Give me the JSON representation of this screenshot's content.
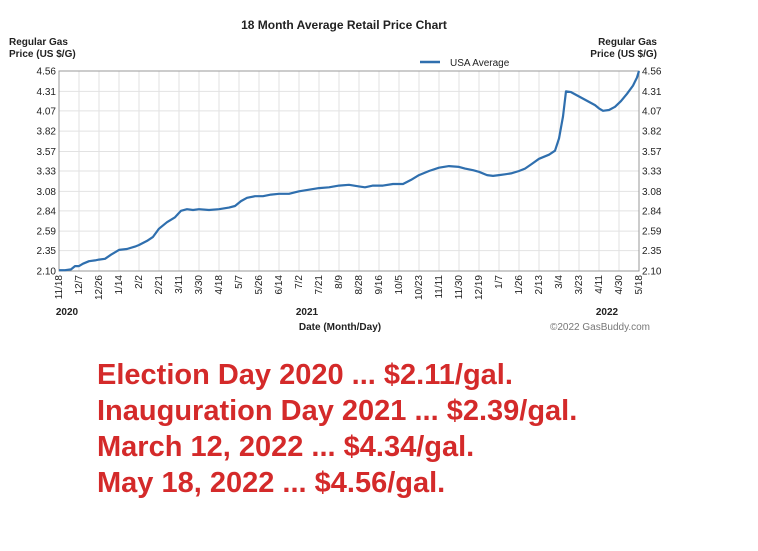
{
  "chart_data": {
    "type": "line",
    "title": "18 Month Average Retail Price Chart",
    "ylabel_left": [
      "Regular Gas",
      "Price (US $/G)"
    ],
    "ylabel_right": [
      "Regular Gas",
      "Price (US $/G)"
    ],
    "xlabel": "Date (Month/Day)",
    "copyright": "©2022 GasBuddy.com",
    "legend": {
      "label": "USA Average",
      "position": "top-right"
    },
    "ylim": [
      2.1,
      4.56
    ],
    "yticks": [
      "4.56",
      "4.31",
      "4.07",
      "3.82",
      "3.57",
      "3.33",
      "3.08",
      "2.84",
      "2.59",
      "2.35",
      "2.10"
    ],
    "xticks": [
      "11/18",
      "12/7",
      "12/26",
      "1/14",
      "2/2",
      "2/21",
      "3/11",
      "3/30",
      "4/18",
      "5/7",
      "5/26",
      "6/14",
      "7/2",
      "7/21",
      "8/9",
      "8/28",
      "9/16",
      "10/5",
      "10/23",
      "11/11",
      "11/30",
      "12/19",
      "1/7",
      "1/26",
      "2/13",
      "3/4",
      "3/23",
      "4/11",
      "4/30",
      "5/18"
    ],
    "year_labels": [
      {
        "label": "2020",
        "tick": 0
      },
      {
        "label": "2021",
        "tick": 12
      },
      {
        "label": "2022",
        "tick": 27
      }
    ],
    "grid": true,
    "series": [
      {
        "name": "USA Average",
        "color": "#2f6fae",
        "points": [
          [
            0,
            2.11
          ],
          [
            0.3,
            2.11
          ],
          [
            0.6,
            2.12
          ],
          [
            0.8,
            2.16
          ],
          [
            1.0,
            2.16
          ],
          [
            1.2,
            2.19
          ],
          [
            1.5,
            2.22
          ],
          [
            1.8,
            2.23
          ],
          [
            2.0,
            2.24
          ],
          [
            2.3,
            2.25
          ],
          [
            2.6,
            2.3
          ],
          [
            3.0,
            2.36
          ],
          [
            3.4,
            2.37
          ],
          [
            3.8,
            2.4
          ],
          [
            4.0,
            2.42
          ],
          [
            4.4,
            2.47
          ],
          [
            4.7,
            2.52
          ],
          [
            5.0,
            2.62
          ],
          [
            5.4,
            2.7
          ],
          [
            5.8,
            2.76
          ],
          [
            6.1,
            2.84
          ],
          [
            6.4,
            2.86
          ],
          [
            6.7,
            2.85
          ],
          [
            7.0,
            2.86
          ],
          [
            7.5,
            2.85
          ],
          [
            8.0,
            2.86
          ],
          [
            8.5,
            2.88
          ],
          [
            8.8,
            2.9
          ],
          [
            9.1,
            2.96
          ],
          [
            9.4,
            3.0
          ],
          [
            9.8,
            3.02
          ],
          [
            10.2,
            3.02
          ],
          [
            10.6,
            3.04
          ],
          [
            11.0,
            3.05
          ],
          [
            11.5,
            3.05
          ],
          [
            12.0,
            3.08
          ],
          [
            12.5,
            3.1
          ],
          [
            13.0,
            3.12
          ],
          [
            13.5,
            3.13
          ],
          [
            14.0,
            3.15
          ],
          [
            14.5,
            3.16
          ],
          [
            15.0,
            3.14
          ],
          [
            15.3,
            3.13
          ],
          [
            15.7,
            3.15
          ],
          [
            16.2,
            3.15
          ],
          [
            16.7,
            3.17
          ],
          [
            17.2,
            3.17
          ],
          [
            17.6,
            3.22
          ],
          [
            18.0,
            3.28
          ],
          [
            18.5,
            3.33
          ],
          [
            19.0,
            3.37
          ],
          [
            19.5,
            3.39
          ],
          [
            20.0,
            3.38
          ],
          [
            20.3,
            3.36
          ],
          [
            20.7,
            3.34
          ],
          [
            21.0,
            3.32
          ],
          [
            21.4,
            3.28
          ],
          [
            21.7,
            3.27
          ],
          [
            22.0,
            3.28
          ],
          [
            22.3,
            3.29
          ],
          [
            22.6,
            3.3
          ],
          [
            23.0,
            3.33
          ],
          [
            23.3,
            3.36
          ],
          [
            23.6,
            3.41
          ],
          [
            24.0,
            3.48
          ],
          [
            24.5,
            3.53
          ],
          [
            24.8,
            3.58
          ],
          [
            25.0,
            3.73
          ],
          [
            25.2,
            4.0
          ],
          [
            25.35,
            4.31
          ],
          [
            25.6,
            4.3
          ],
          [
            25.9,
            4.26
          ],
          [
            26.2,
            4.22
          ],
          [
            26.5,
            4.18
          ],
          [
            26.8,
            4.14
          ],
          [
            27.0,
            4.1
          ],
          [
            27.2,
            4.07
          ],
          [
            27.5,
            4.08
          ],
          [
            27.8,
            4.12
          ],
          [
            28.1,
            4.19
          ],
          [
            28.4,
            4.28
          ],
          [
            28.7,
            4.38
          ],
          [
            28.9,
            4.48
          ],
          [
            29.0,
            4.56
          ]
        ]
      }
    ]
  },
  "annotations": [
    "Election Day 2020 ... $2.11/gal.",
    "Inauguration Day 2021 ... $2.39/gal.",
    "March 12, 2022 ... $4.34/gal.",
    "May 18, 2022 ... $4.56/gal."
  ]
}
